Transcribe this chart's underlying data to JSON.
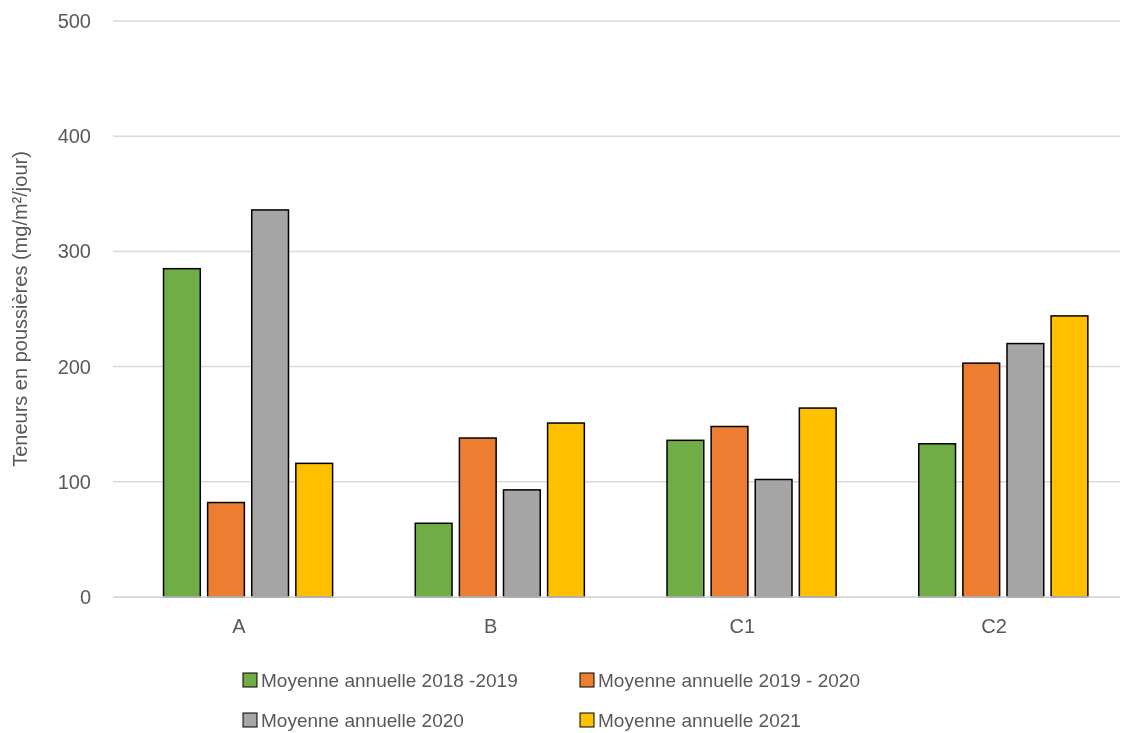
{
  "chart_data": {
    "type": "bar",
    "ylabel": "Teneurs en poussières (mg/m²/jour)",
    "categories": [
      "A",
      "B",
      "C1",
      "C2"
    ],
    "series": [
      {
        "name": "Moyenne annuelle 2018 -2019",
        "color": "#70ad47",
        "values": [
          285,
          64,
          136,
          133
        ]
      },
      {
        "name": "Moyenne annuelle 2019 - 2020",
        "color": "#ed7d31",
        "values": [
          82,
          138,
          148,
          203
        ]
      },
      {
        "name": "Moyenne annuelle 2020",
        "color": "#a5a5a5",
        "values": [
          336,
          93,
          102,
          220
        ]
      },
      {
        "name": "Moyenne annuelle 2021",
        "color": "#ffc000",
        "values": [
          116,
          151,
          164,
          244
        ]
      }
    ],
    "ylim": [
      0,
      500
    ],
    "yticks": [
      0,
      100,
      200,
      300,
      400,
      500
    ],
    "grid": "y",
    "legend": "bottom"
  }
}
